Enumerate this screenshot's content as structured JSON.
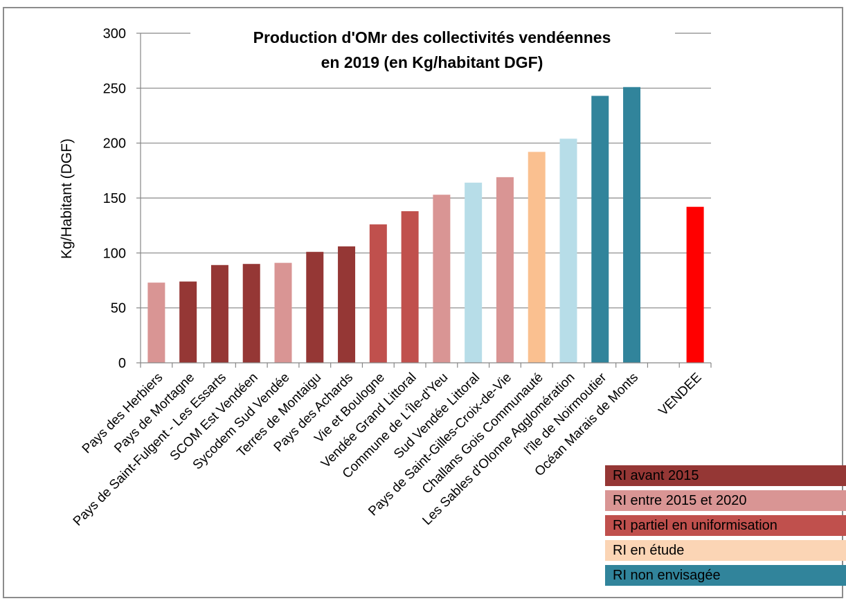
{
  "chart_data": {
    "type": "bar",
    "title": "Production  d'OMr des collectivités vendéennes en 2019 (en Kg/habitant DGF)",
    "title_lines": [
      "Production  d'OMr des collectivités vendéennes",
      "en 2019 (en Kg/habitant DGF)"
    ],
    "xlabel": "",
    "ylabel": "Kg/Habitant (DGF)",
    "ylim": [
      0,
      300
    ],
    "yticks": [
      0,
      50,
      100,
      150,
      200,
      250,
      300
    ],
    "grid": true,
    "legend_position": "bottom-right",
    "categories": [
      "Pays des Herbiers",
      "Pays de Mortagne",
      "Pays de Saint-Fulgent - Les Essarts",
      "SCOM Est Vendéen",
      "Sycodem Sud Vendée",
      "Terres de Montaigu",
      "Pays des Achards",
      "Vie et Boulogne",
      "Vendée Grand Littoral",
      "Commune de L'Île-d'Yeu",
      "Sud Vendée Littoral",
      "Pays de Saint-Gilles-Croix-de-Vie",
      "Challans Gois Communauté",
      "Les Sables d'Olonne Agglomération",
      "l'île de Noirmoutier",
      "Océan Marais de Monts",
      "",
      "VENDEE"
    ],
    "values": [
      73,
      74,
      89,
      90,
      91,
      101,
      106,
      126,
      138,
      153,
      164,
      169,
      192,
      204,
      243,
      251,
      null,
      142
    ],
    "bar_colors": [
      "#d99594",
      "#953735",
      "#953735",
      "#953735",
      "#d99594",
      "#953735",
      "#953735",
      "#c0504d",
      "#c0504d",
      "#d99594",
      "#b7dde8",
      "#d99594",
      "#fac090",
      "#b7dde8",
      "#31849b",
      "#31849b",
      "",
      "#ff0000"
    ]
  },
  "legend": [
    {
      "label": "RI avant 2015",
      "color": "#953735"
    },
    {
      "label": "RI entre 2015 et 2020",
      "color": "#d99594"
    },
    {
      "label": "RI  partiel en uniformisation",
      "color": "#c0504d"
    },
    {
      "label": "RI en étude",
      "color": "#fbd5b5"
    },
    {
      "label": "RI non envisagée",
      "color": "#31849b"
    }
  ]
}
